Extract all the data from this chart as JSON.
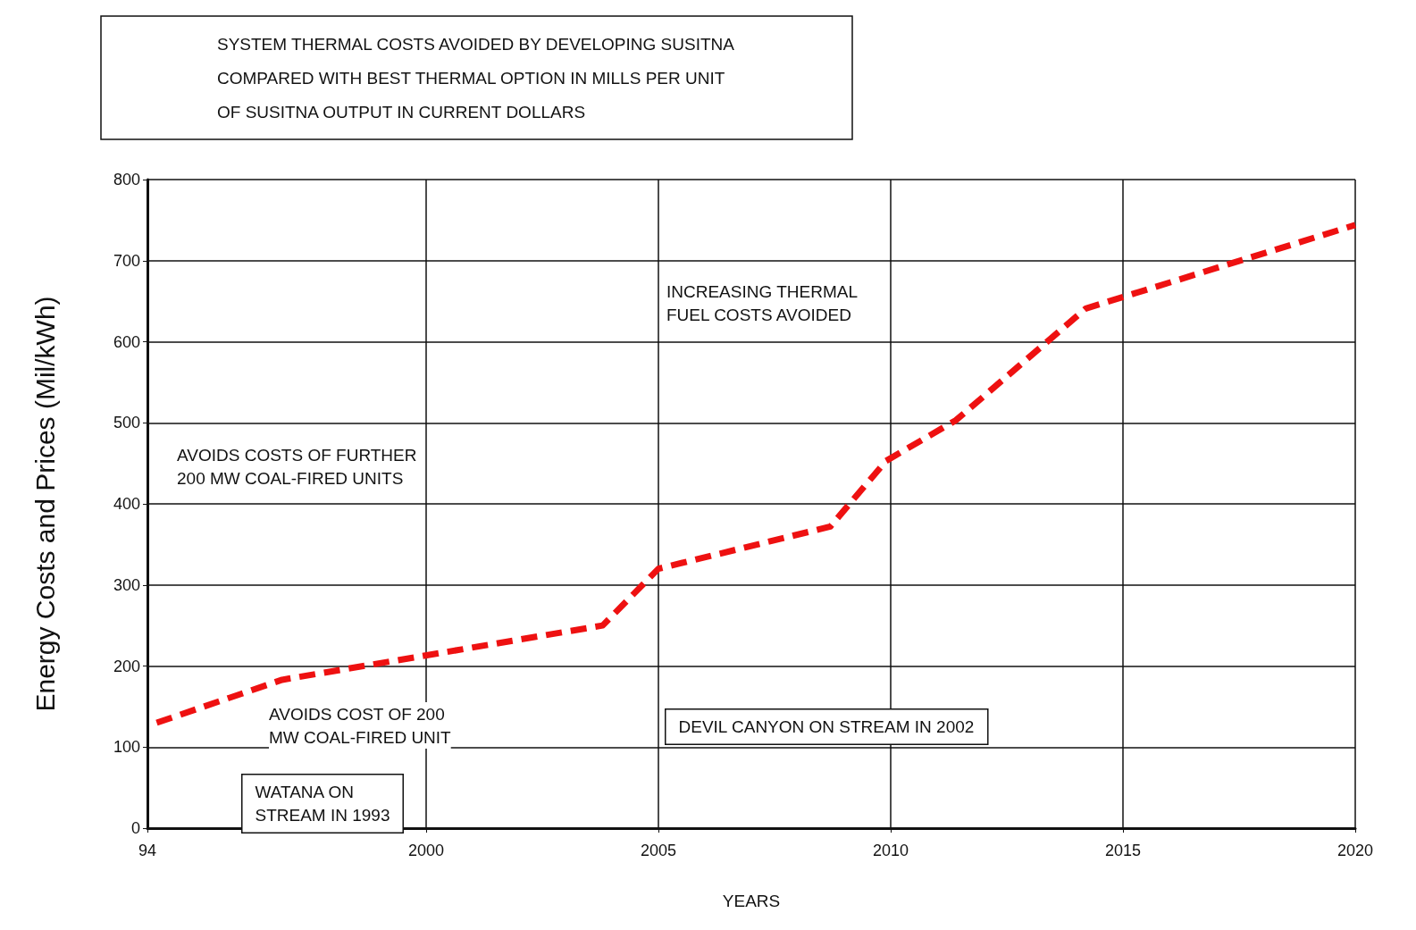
{
  "chart_data": {
    "type": "line",
    "title": "SYSTEM THERMAL COSTS AVOIDED BY DEVELOPING SUSITNA\nCOMPARED WITH BEST THERMAL OPTION IN MILLS PER UNIT\nOF SUSITNA OUTPUT IN CURRENT DOLLARS",
    "xlabel": "YEARS",
    "ylabel": "Energy Costs and Prices (Mil/kWh)",
    "series": [
      {
        "color": "#ee1111",
        "x": [
          1994.2,
          1996.9,
          2003.8,
          2005,
          2008.7,
          2009.9,
          2011.4,
          2014.2,
          2020
        ],
        "values": [
          130,
          183,
          250,
          320,
          372,
          453,
          503,
          641,
          744
        ]
      }
    ],
    "xlim": [
      1994,
      2020
    ],
    "xticks": [
      {
        "value": 1994,
        "label": "94"
      },
      2000,
      2005,
      2010,
      2015,
      2020
    ],
    "ylim": [
      0,
      800
    ],
    "yticks": [
      0,
      100,
      200,
      300,
      400,
      500,
      600,
      700,
      800
    ],
    "grid": true,
    "line_style": "dashed",
    "marker": "none",
    "annotations": [
      "AVOIDS COSTS OF FURTHER\n200 MW COAL-FIRED UNITS",
      "INCREASING THERMAL\nFUEL COSTS AVOIDED",
      "AVOIDS COST OF 200\nMW COAL-FIRED UNIT",
      "WATANA ON\nSTREAM IN 1993",
      "DEVIL CANYON ON STREAM IN 2002"
    ]
  }
}
